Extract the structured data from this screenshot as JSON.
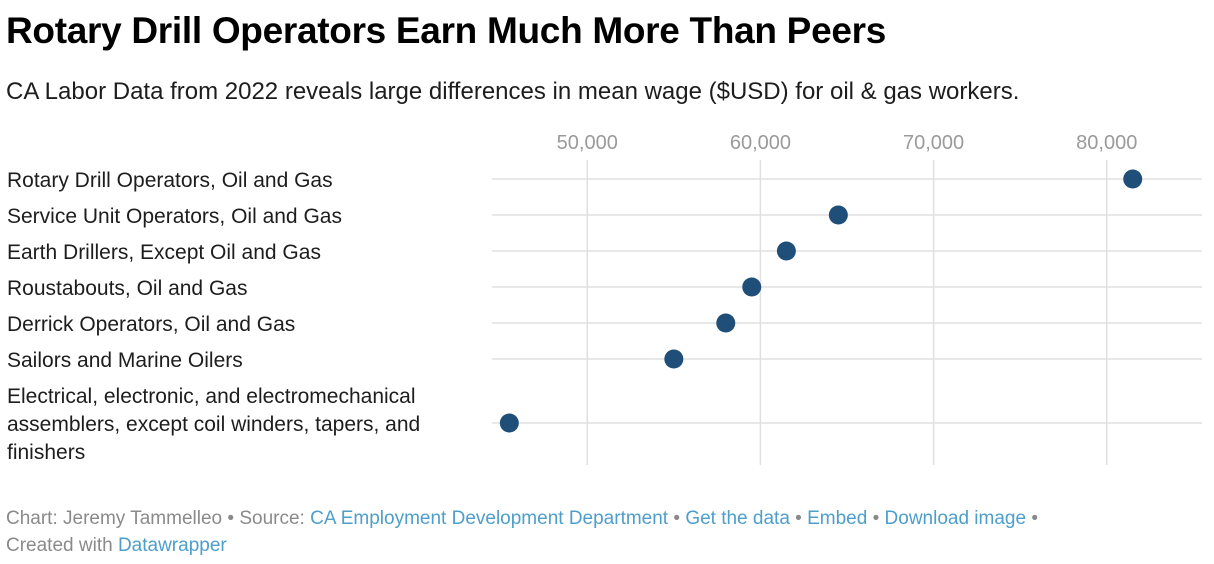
{
  "title": "Rotary Drill Operators Earn Much More Than Peers",
  "subtitle": "CA Labor Data from 2022 reveals large differences in mean wage ($USD) for oil & gas workers.",
  "chart_data": {
    "type": "scatter",
    "title": "Rotary Drill Operators Earn Much More Than Peers",
    "subtitle": "CA Labor Data from 2022 reveals large differences in mean wage ($USD) for oil & gas workers.",
    "x_ticks": [
      50000,
      60000,
      70000,
      80000
    ],
    "x_tick_labels": [
      "50,000",
      "60,000",
      "70,000",
      "80,000"
    ],
    "xlim": [
      44500,
      85500
    ],
    "x_axis_position": "top",
    "grid": true,
    "dot_color": "#1f4e79",
    "categories": [
      [
        "Rotary Drill Operators, Oil and Gas"
      ],
      [
        "Service Unit Operators, Oil and Gas"
      ],
      [
        "Earth Drillers, Except Oil and Gas"
      ],
      [
        "Roustabouts, Oil and Gas"
      ],
      [
        "Derrick Operators, Oil and Gas"
      ],
      [
        "Sailors and Marine Oilers"
      ],
      [
        "Electrical, electronic, and electromechanical",
        "assemblers, except coil winders, tapers, and",
        "finishers"
      ]
    ],
    "values": [
      81500,
      64500,
      61500,
      59500,
      58000,
      55000,
      45500
    ]
  },
  "footer": {
    "chart_by": "Chart: Jeremy Tammelleo",
    "source_label": "Source:",
    "source_link": "CA Employment Development Department",
    "get_data": "Get the data",
    "embed": "Embed",
    "download": "Download image",
    "created_with": "Created with",
    "tool": "Datawrapper",
    "separator": "•"
  }
}
